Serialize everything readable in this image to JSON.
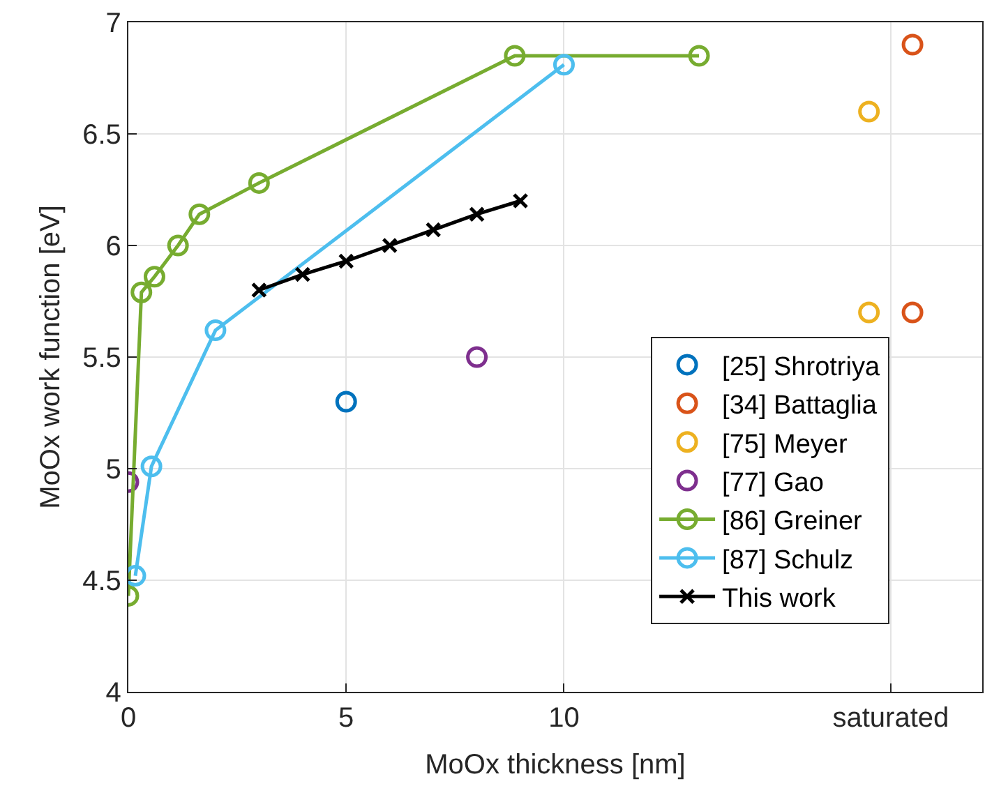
{
  "chart_data": {
    "type": "scatter",
    "xlabel": "MoOx thickness [nm]",
    "ylabel": "MoOx work function [eV]",
    "xlim": [
      0,
      19.6
    ],
    "xticks": [
      0,
      5,
      10,
      {
        "value": 17.5,
        "label": "saturated"
      }
    ],
    "ylim": [
      4,
      7
    ],
    "yticks": [
      4,
      4.5,
      5,
      5.5,
      6,
      6.5,
      7
    ],
    "grid": true,
    "legend": "bottom right",
    "series": [
      {
        "name": "[25] Shrotriya",
        "marker": "circle",
        "color": "#0072bd",
        "x": [
          5
        ],
        "values": [
          5.3
        ]
      },
      {
        "name": "[34] Battaglia",
        "marker": "circle",
        "color": "#d95319",
        "x": [
          18,
          18
        ],
        "values": [
          6.9,
          5.7
        ]
      },
      {
        "name": "[75] Meyer",
        "marker": "circle",
        "color": "#edb120",
        "x": [
          17,
          17
        ],
        "values": [
          6.6,
          5.7
        ]
      },
      {
        "name": "[77] Gao",
        "marker": "circle",
        "color": "#7e2f8e",
        "x": [
          0,
          8
        ],
        "values": [
          4.94,
          5.5
        ]
      },
      {
        "name": "[86] Greiner",
        "type": "line",
        "marker": "circle",
        "color": "#77ac30",
        "x": [
          0,
          0.3,
          0.6,
          1.14,
          1.63,
          3.0,
          8.87,
          13.1
        ],
        "values": [
          4.43,
          5.79,
          5.86,
          6.0,
          6.14,
          6.28,
          6.85,
          6.85
        ]
      },
      {
        "name": "[87] Schulz",
        "type": "line",
        "marker": "circle",
        "color": "#4dbeee",
        "x": [
          0.16,
          0.53,
          2.0,
          10.0
        ],
        "values": [
          4.52,
          5.01,
          5.62,
          6.81
        ]
      },
      {
        "name": "This work",
        "type": "line",
        "marker": "cross",
        "color": "#000000",
        "x": [
          3,
          4,
          5,
          6,
          7,
          8,
          9
        ],
        "values": [
          5.8,
          5.87,
          5.93,
          6.0,
          6.07,
          6.14,
          6.2
        ]
      }
    ]
  }
}
